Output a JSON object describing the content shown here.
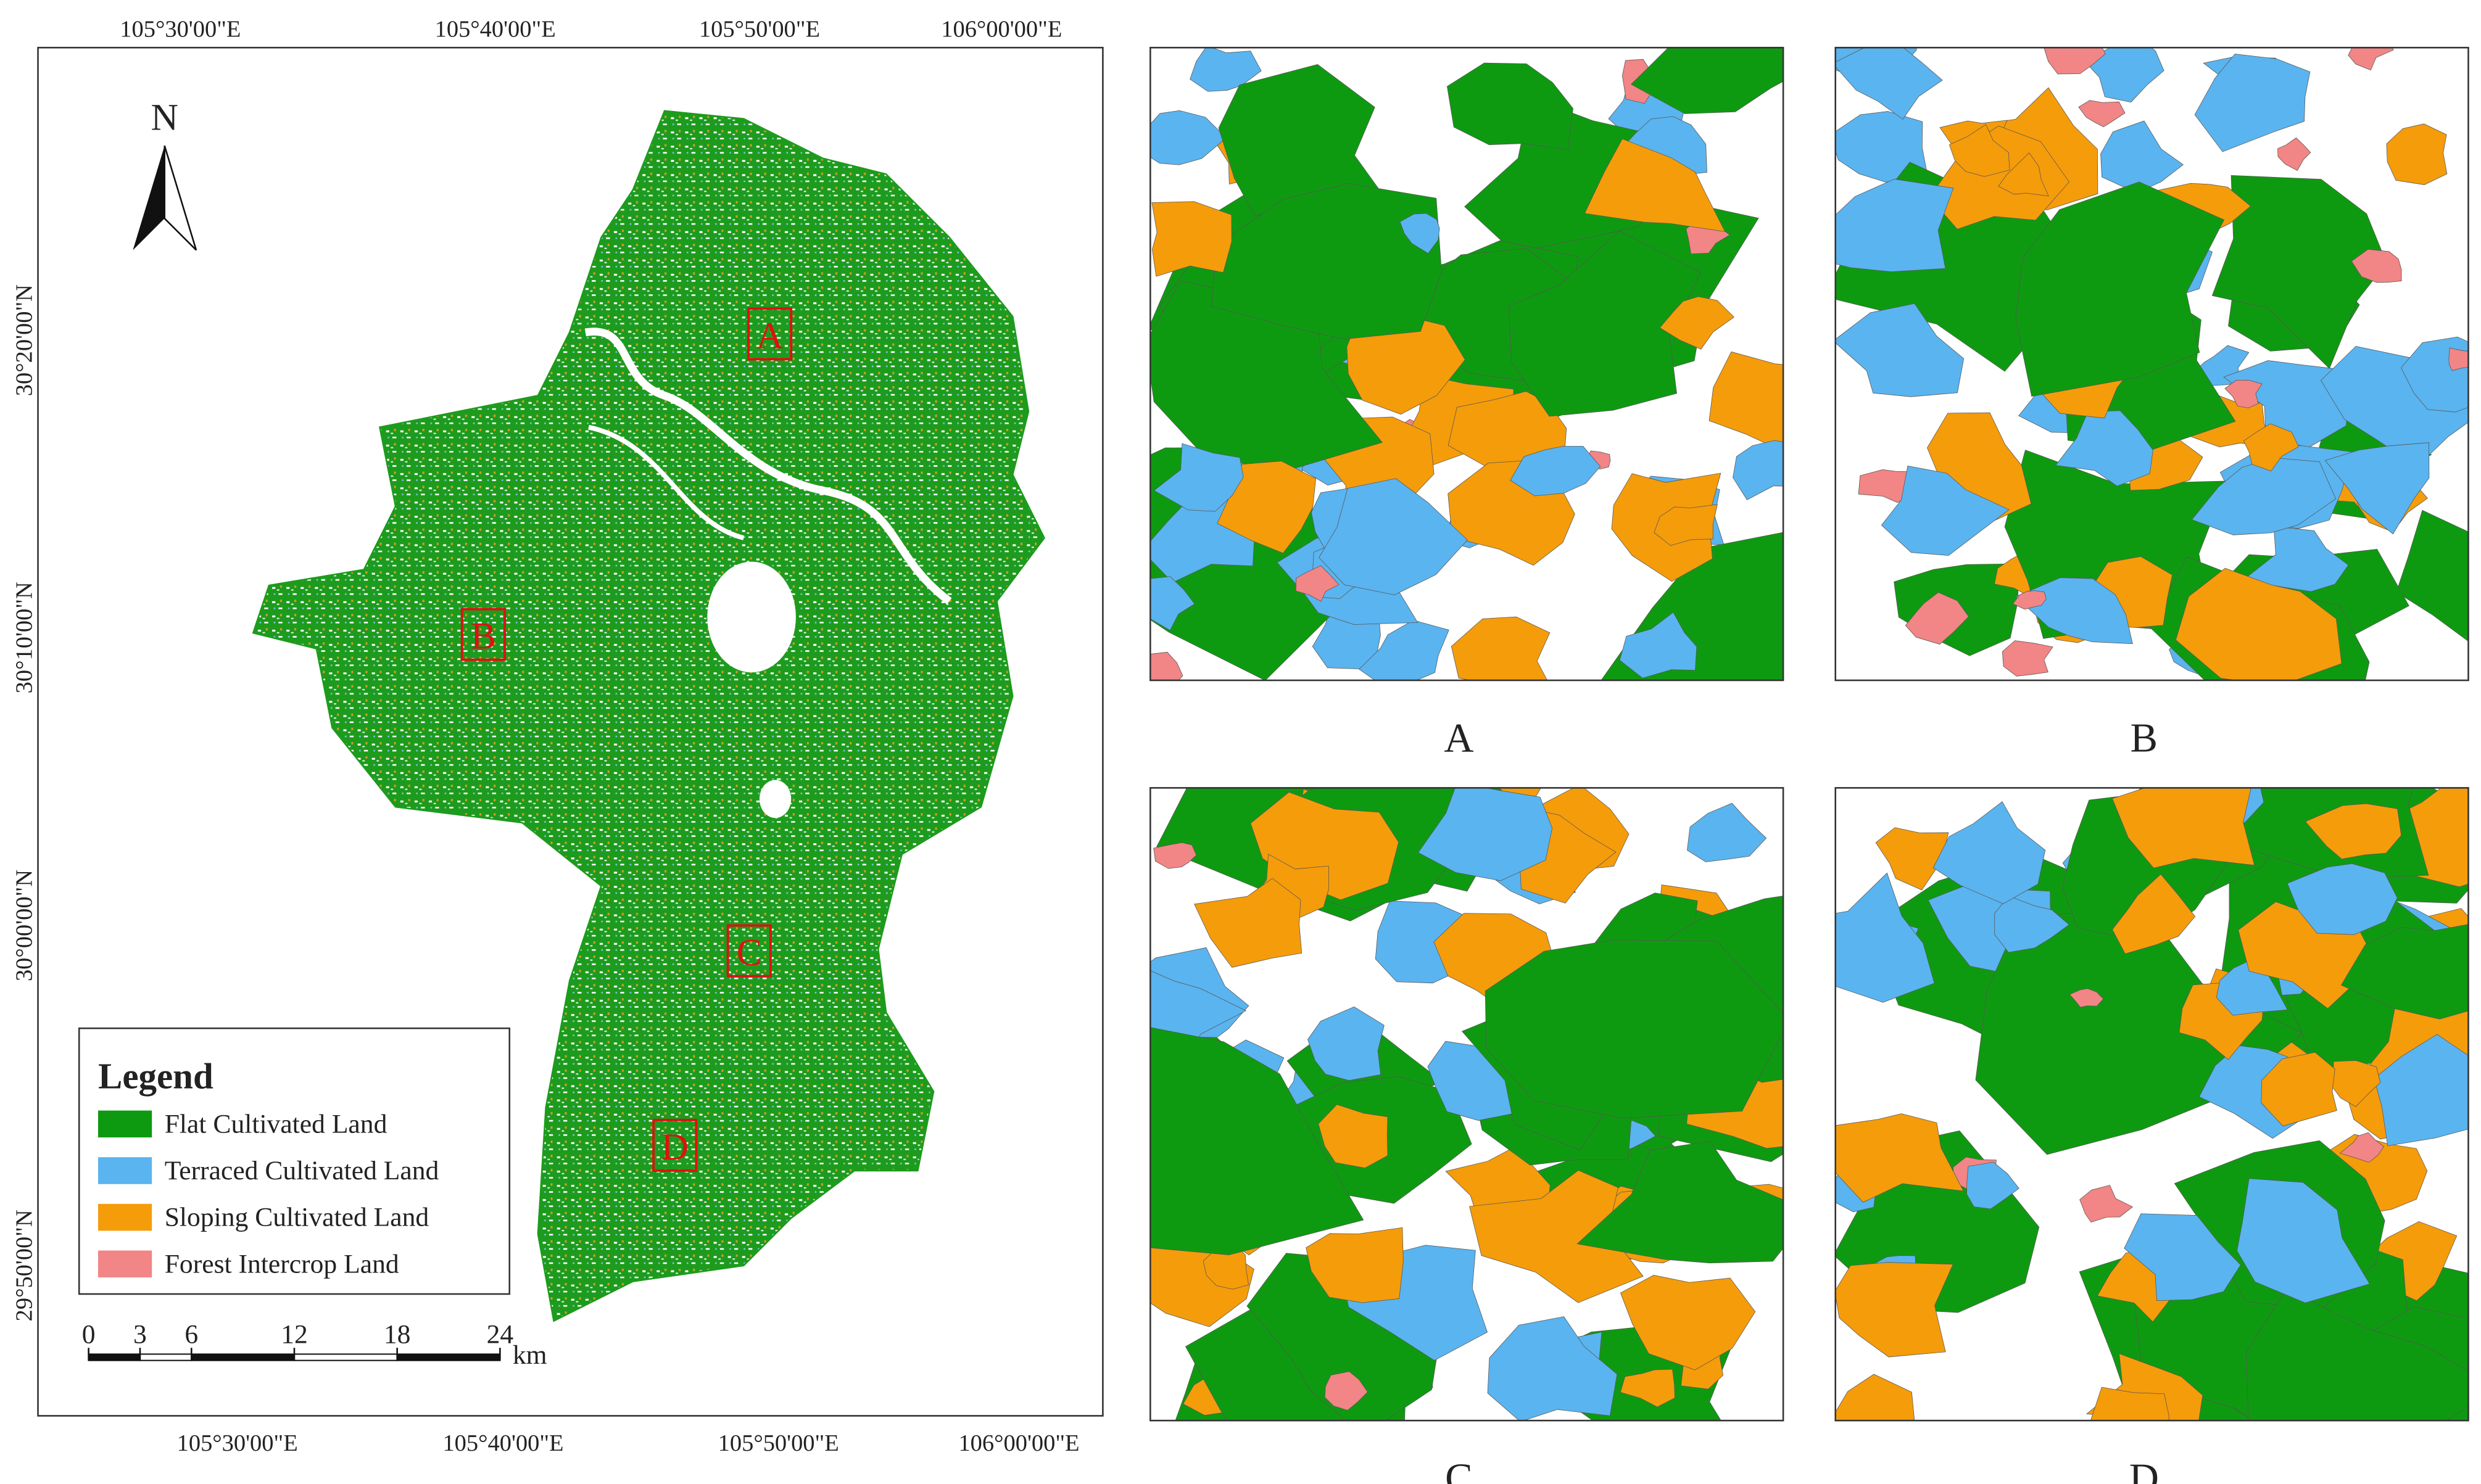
{
  "map": {
    "north_label": "N",
    "top_lon_labels": [
      "105°30'00\"E",
      "105°40'00\"E",
      "105°50'00\"E",
      "106°00'00\"E"
    ],
    "bottom_lon_labels": [
      "105°30'00\"E",
      "105°40'00\"E",
      "105°50'00\"E",
      "106°00'00\"E"
    ],
    "lat_labels": [
      "30°20'00\"N",
      "30°10'00\"N",
      "30°00'00\"N",
      "29°50'00\"N"
    ],
    "site_labels": [
      "A",
      "B",
      "C",
      "D"
    ],
    "legend": {
      "title": "Legend",
      "items": [
        {
          "label": "Flat Cultivated Land",
          "color": "#0e9a10"
        },
        {
          "label": "Terraced Cultivated Land",
          "color": "#5ab4ef"
        },
        {
          "label": "Sloping Cultivated Land",
          "color": "#f59c0b"
        },
        {
          "label": "Forest Intercrop Land",
          "color": "#f28585"
        }
      ]
    },
    "scale_bar": {
      "ticks": [
        0,
        3,
        6,
        12,
        18,
        24
      ],
      "unit": "km"
    }
  },
  "panels": [
    {
      "label": "A"
    },
    {
      "label": "B"
    },
    {
      "label": "C"
    },
    {
      "label": "D"
    }
  ]
}
